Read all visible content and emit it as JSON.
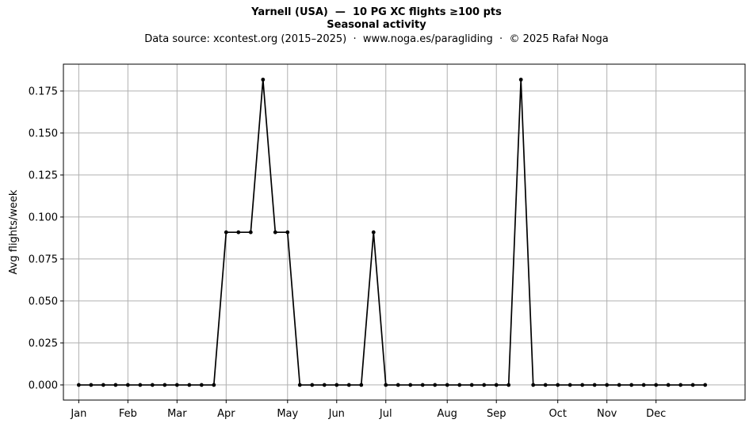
{
  "chart_data": {
    "type": "line",
    "title": "Yarnell (USA)  —  10 PG XC flights ≥100 pts",
    "subtitle": "Seasonal activity",
    "source": "Data source: xcontest.org (2015–2025)  ·  www.noga.es/paragliding  ·  © 2025 Rafał Noga",
    "xlabel": "",
    "ylabel": "Avg flights/week",
    "ylim": [
      -0.009,
      0.191
    ],
    "xlim": [
      -1.25,
      54.25
    ],
    "grid": true,
    "yticks": [
      0.0,
      0.025,
      0.05,
      0.075,
      0.1,
      0.125,
      0.15,
      0.175
    ],
    "ytick_labels": [
      "0.000",
      "0.025",
      "0.050",
      "0.075",
      "0.100",
      "0.125",
      "0.150",
      "0.175"
    ],
    "xticks": [
      0,
      4,
      8,
      12,
      17,
      21,
      25,
      30,
      34,
      39,
      43,
      47
    ],
    "xtick_labels": [
      "Jan",
      "Feb",
      "Mar",
      "Apr",
      "May",
      "Jun",
      "Jul",
      "Aug",
      "Sep",
      "Oct",
      "Nov",
      "Dec"
    ],
    "color": "#000000",
    "x": [
      0,
      1,
      2,
      3,
      4,
      5,
      6,
      7,
      8,
      9,
      10,
      11,
      12,
      13,
      14,
      15,
      16,
      17,
      18,
      19,
      20,
      21,
      22,
      23,
      24,
      25,
      26,
      27,
      28,
      29,
      30,
      31,
      32,
      33,
      34,
      35,
      36,
      37,
      38,
      39,
      40,
      41,
      42,
      43,
      44,
      45,
      46,
      47,
      48,
      49,
      50,
      51
    ],
    "values": [
      0,
      0,
      0,
      0,
      0,
      0,
      0,
      0,
      0,
      0,
      0,
      0,
      0.0909,
      0.0909,
      0.0909,
      0.1818,
      0.0909,
      0.0909,
      0,
      0,
      0,
      0,
      0,
      0,
      0.0909,
      0,
      0,
      0,
      0,
      0,
      0,
      0,
      0,
      0,
      0,
      0,
      0.1818,
      0,
      0,
      0,
      0,
      0,
      0,
      0,
      0,
      0,
      0,
      0,
      0,
      0,
      0,
      0
    ]
  }
}
